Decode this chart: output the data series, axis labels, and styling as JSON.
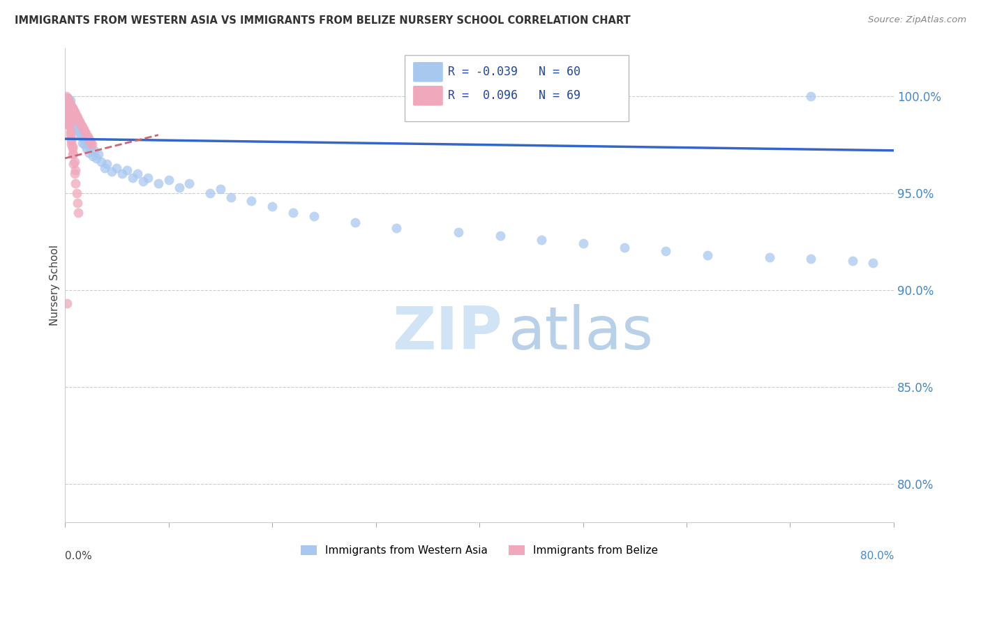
{
  "title": "IMMIGRANTS FROM WESTERN ASIA VS IMMIGRANTS FROM BELIZE NURSERY SCHOOL CORRELATION CHART",
  "source": "Source: ZipAtlas.com",
  "ylabel": "Nursery School",
  "y_tick_labels": [
    "80.0%",
    "85.0%",
    "90.0%",
    "95.0%",
    "100.0%"
  ],
  "y_tick_values": [
    0.8,
    0.85,
    0.9,
    0.95,
    1.0
  ],
  "x_range": [
    0.0,
    0.8
  ],
  "y_range": [
    0.78,
    1.025
  ],
  "legend_blue_r": "-0.039",
  "legend_blue_n": "60",
  "legend_pink_r": "0.096",
  "legend_pink_n": "69",
  "blue_color": "#a8c8f0",
  "pink_color": "#f0a8bc",
  "trendline_blue_color": "#3366cc",
  "trendline_pink_color": "#cc6677",
  "background_color": "#ffffff",
  "blue_scatter_x": [
    0.003,
    0.005,
    0.007,
    0.008,
    0.009,
    0.01,
    0.011,
    0.012,
    0.013,
    0.014,
    0.015,
    0.016,
    0.017,
    0.018,
    0.019,
    0.02,
    0.021,
    0.022,
    0.023,
    0.025,
    0.027,
    0.028,
    0.03,
    0.032,
    0.035,
    0.038,
    0.04,
    0.045,
    0.05,
    0.055,
    0.06,
    0.065,
    0.07,
    0.075,
    0.08,
    0.09,
    0.1,
    0.11,
    0.12,
    0.14,
    0.15,
    0.16,
    0.18,
    0.2,
    0.22,
    0.24,
    0.28,
    0.32,
    0.38,
    0.42,
    0.46,
    0.5,
    0.54,
    0.58,
    0.62,
    0.68,
    0.72,
    0.76,
    0.78,
    0.72
  ],
  "blue_scatter_y": [
    0.999,
    0.998,
    0.994,
    0.991,
    0.988,
    0.985,
    0.983,
    0.986,
    0.982,
    0.984,
    0.98,
    0.979,
    0.976,
    0.978,
    0.975,
    0.977,
    0.973,
    0.975,
    0.971,
    0.974,
    0.969,
    0.972,
    0.968,
    0.97,
    0.966,
    0.963,
    0.965,
    0.961,
    0.963,
    0.96,
    0.962,
    0.958,
    0.96,
    0.956,
    0.958,
    0.955,
    0.957,
    0.953,
    0.955,
    0.95,
    0.952,
    0.948,
    0.946,
    0.943,
    0.94,
    0.938,
    0.935,
    0.932,
    0.93,
    0.928,
    0.926,
    0.924,
    0.922,
    0.92,
    0.918,
    0.917,
    0.916,
    0.915,
    0.914,
    1.0
  ],
  "pink_scatter_x": [
    0.001,
    0.002,
    0.003,
    0.004,
    0.005,
    0.006,
    0.007,
    0.008,
    0.009,
    0.01,
    0.011,
    0.012,
    0.013,
    0.014,
    0.015,
    0.016,
    0.017,
    0.018,
    0.019,
    0.02,
    0.021,
    0.022,
    0.023,
    0.024,
    0.025,
    0.026,
    0.002,
    0.003,
    0.004,
    0.005,
    0.006,
    0.007,
    0.008,
    0.009,
    0.01,
    0.011,
    0.012,
    0.013,
    0.001,
    0.002,
    0.003,
    0.004,
    0.005,
    0.006,
    0.007,
    0.008,
    0.009,
    0.01,
    0.001,
    0.002,
    0.003,
    0.004,
    0.005,
    0.006,
    0.007,
    0.002,
    0.003,
    0.004,
    0.001,
    0.002,
    0.003,
    0.004,
    0.005,
    0.001,
    0.002,
    0.001,
    0.002,
    0.001,
    0.002
  ],
  "pink_scatter_y": [
    1.0,
    0.999,
    0.998,
    0.997,
    0.996,
    0.995,
    0.994,
    0.993,
    0.992,
    0.991,
    0.99,
    0.989,
    0.988,
    0.987,
    0.986,
    0.985,
    0.984,
    0.983,
    0.982,
    0.981,
    0.98,
    0.979,
    0.978,
    0.977,
    0.976,
    0.975,
    0.995,
    0.99,
    0.985,
    0.98,
    0.975,
    0.97,
    0.965,
    0.96,
    0.955,
    0.95,
    0.945,
    0.94,
    0.998,
    0.994,
    0.99,
    0.986,
    0.982,
    0.978,
    0.974,
    0.97,
    0.966,
    0.962,
    0.997,
    0.993,
    0.989,
    0.985,
    0.981,
    0.977,
    0.973,
    0.996,
    0.992,
    0.988,
    0.999,
    0.996,
    0.993,
    0.99,
    0.987,
    0.999,
    0.997,
    0.998,
    0.995,
    0.996,
    0.893
  ]
}
